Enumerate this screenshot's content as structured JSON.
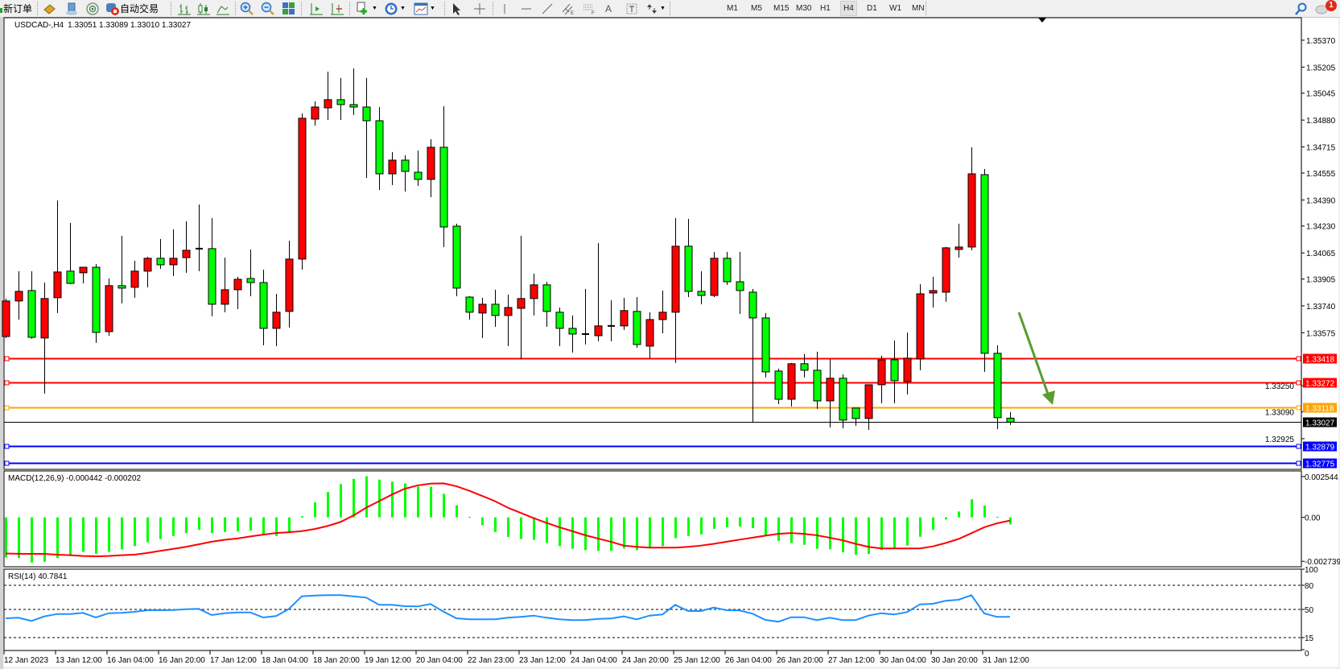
{
  "toolbar": {
    "new_order_label": "新订单",
    "auto_trading_label": "自动交易",
    "timeframes": [
      "M1",
      "M5",
      "M15",
      "M30",
      "H1",
      "H4",
      "D1",
      "W1",
      "MN"
    ],
    "active_timeframe": "H4",
    "notification_count": "1",
    "icons": [
      "new-order-icon",
      "strategy-tester-icon",
      "market-watch-icon",
      "signals-icon",
      "auto-trading-icon",
      "bar-chart-icon",
      "candlestick-icon",
      "line-chart-icon",
      "zoom-in-icon",
      "zoom-out-icon",
      "tile-windows-icon",
      "chart-shift-icon",
      "auto-scroll-icon",
      "indicators-icon",
      "periods-icon",
      "templates-icon",
      "cursor-icon",
      "crosshair-icon",
      "vertical-line-icon",
      "horizontal-line-icon",
      "trendline-icon",
      "equidistant-channel-icon",
      "fibonacci-icon",
      "text-icon",
      "text-label-icon",
      "arrows-icon",
      "search-icon",
      "notifications-icon"
    ]
  },
  "chart_data": {
    "type": "candlestick",
    "symbol_header": "USDCAD-,H4",
    "ohlc_header": "1.33051 1.33089 1.33010 1.33027",
    "up_color": "#ff0000",
    "down_color": "#00ff00",
    "ylim": [
      1.32737,
      1.35508
    ],
    "price_ticks": [
      "1.35370",
      "1.35205",
      "1.35045",
      "1.34880",
      "1.34715",
      "1.34555",
      "1.34390",
      "1.34230",
      "1.34065",
      "1.33905",
      "1.33740",
      "1.33575",
      "1.33250",
      "1.33090",
      "1.32925"
    ],
    "time_labels": [
      "12 Jan 2023",
      "13 Jan 12:00",
      "16 Jan 04:00",
      "16 Jan 20:00",
      "17 Jan 12:00",
      "18 Jan 04:00",
      "18 Jan 20:00",
      "19 Jan 12:00",
      "20 Jan 04:00",
      "22 Jan 23:00",
      "23 Jan 12:00",
      "24 Jan 04:00",
      "24 Jan 20:00",
      "25 Jan 12:00",
      "26 Jan 04:00",
      "26 Jan 20:00",
      "27 Jan 12:00",
      "30 Jan 04:00",
      "30 Jan 20:00",
      "31 Jan 12:00"
    ],
    "candles_ohlc": [
      [
        1.33552,
        1.33785,
        1.33543,
        1.3377
      ],
      [
        1.3377,
        1.33953,
        1.33656,
        1.33829
      ],
      [
        1.33834,
        1.33953,
        1.33538,
        1.33547
      ],
      [
        1.33543,
        1.33883,
        1.33202,
        1.33785
      ],
      [
        1.3379,
        1.34387,
        1.33696,
        1.33948
      ],
      [
        1.33953,
        1.34249,
        1.33873,
        1.33878
      ],
      [
        1.33943,
        1.33977,
        1.33878,
        1.33977
      ],
      [
        1.33977,
        1.33997,
        1.33513,
        1.33577
      ],
      [
        1.33582,
        1.33908,
        1.33557,
        1.33864
      ],
      [
        1.33864,
        1.3417,
        1.33755,
        1.33849
      ],
      [
        1.33854,
        1.34017,
        1.3379,
        1.33953
      ],
      [
        1.33953,
        1.34041,
        1.33854,
        1.34032
      ],
      [
        1.34032,
        1.3415,
        1.33967,
        1.33992
      ],
      [
        1.33992,
        1.34209,
        1.33923,
        1.34032
      ],
      [
        1.34036,
        1.34259,
        1.33943,
        1.34081
      ],
      [
        1.34091,
        1.34362,
        1.33953,
        1.34091
      ],
      [
        1.34091,
        1.34279,
        1.33676,
        1.3375
      ],
      [
        1.3375,
        1.34036,
        1.33701,
        1.33839
      ],
      [
        1.33839,
        1.33918,
        1.3372,
        1.33903
      ],
      [
        1.33908,
        1.34086,
        1.33799,
        1.33883
      ],
      [
        1.33883,
        1.33962,
        1.33498,
        1.33602
      ],
      [
        1.33602,
        1.33814,
        1.33493,
        1.33701
      ],
      [
        1.33706,
        1.3414,
        1.33607,
        1.34027
      ],
      [
        1.34027,
        1.34921,
        1.33962,
        1.34891
      ],
      [
        1.34886,
        1.34995,
        1.34846,
        1.3496
      ],
      [
        1.34955,
        1.35177,
        1.34881,
        1.35005
      ],
      [
        1.35005,
        1.35138,
        1.34881,
        1.34975
      ],
      [
        1.34975,
        1.35197,
        1.34911,
        1.3496
      ],
      [
        1.3496,
        1.35138,
        1.34525,
        1.34876
      ],
      [
        1.34876,
        1.3496,
        1.34451,
        1.3455
      ],
      [
        1.3455,
        1.34684,
        1.34481,
        1.34634
      ],
      [
        1.34634,
        1.34664,
        1.34442,
        1.34565
      ],
      [
        1.3456,
        1.34693,
        1.34476,
        1.34516
      ],
      [
        1.34516,
        1.34762,
        1.34407,
        1.34713
      ],
      [
        1.34713,
        1.34965,
        1.34101,
        1.34224
      ],
      [
        1.34229,
        1.34244,
        1.33799,
        1.33849
      ],
      [
        1.33794,
        1.33799,
        1.33656,
        1.33701
      ],
      [
        1.33696,
        1.3379,
        1.33543,
        1.3375
      ],
      [
        1.3375,
        1.33839,
        1.33612,
        1.33681
      ],
      [
        1.33681,
        1.33809,
        1.33493,
        1.3373
      ],
      [
        1.33725,
        1.3417,
        1.33414,
        1.33785
      ],
      [
        1.33785,
        1.33938,
        1.33681,
        1.33869
      ],
      [
        1.33869,
        1.33888,
        1.33612,
        1.33706
      ],
      [
        1.33701,
        1.3373,
        1.33493,
        1.33602
      ],
      [
        1.33602,
        1.33681,
        1.33454,
        1.33567
      ],
      [
        1.33567,
        1.33844,
        1.33503,
        1.33562
      ],
      [
        1.33557,
        1.34125,
        1.33523,
        1.33617
      ],
      [
        1.33617,
        1.33775,
        1.33523,
        1.33612
      ],
      [
        1.33617,
        1.3379,
        1.33592,
        1.33711
      ],
      [
        1.33706,
        1.33794,
        1.33483,
        1.33503
      ],
      [
        1.33493,
        1.33701,
        1.33419,
        1.33656
      ],
      [
        1.33656,
        1.33834,
        1.33572,
        1.33701
      ],
      [
        1.33701,
        1.34279,
        1.3339,
        1.34106
      ],
      [
        1.34106,
        1.34274,
        1.33794,
        1.33829
      ],
      [
        1.33829,
        1.33953,
        1.3375,
        1.33804
      ],
      [
        1.33804,
        1.34071,
        1.33794,
        1.34032
      ],
      [
        1.34032,
        1.34071,
        1.33869,
        1.33888
      ],
      [
        1.33888,
        1.34071,
        1.33691,
        1.33834
      ],
      [
        1.33824,
        1.33844,
        1.33024,
        1.33666
      ],
      [
        1.33666,
        1.33696,
        1.33301,
        1.33335
      ],
      [
        1.3334,
        1.33355,
        1.33137,
        1.33167
      ],
      [
        1.33167,
        1.3339,
        1.33123,
        1.33385
      ],
      [
        1.33385,
        1.33444,
        1.33301,
        1.33345
      ],
      [
        1.33345,
        1.33459,
        1.33108,
        1.33157
      ],
      [
        1.33157,
        1.33414,
        1.32994,
        1.33296
      ],
      [
        1.33296,
        1.3332,
        1.32989,
        1.33039
      ],
      [
        1.33113,
        1.33113,
        1.33004,
        1.33049
      ],
      [
        1.33049,
        1.33256,
        1.32979,
        1.33256
      ],
      [
        1.33256,
        1.33434,
        1.33142,
        1.33409
      ],
      [
        1.33409,
        1.33528,
        1.33142,
        1.33281
      ],
      [
        1.33276,
        1.33577,
        1.33197,
        1.33419
      ],
      [
        1.33414,
        1.33873,
        1.33345,
        1.33814
      ],
      [
        1.33819,
        1.33918,
        1.3373,
        1.33834
      ],
      [
        1.33824,
        1.34101,
        1.33765,
        1.34096
      ],
      [
        1.34086,
        1.34244,
        1.34036,
        1.34101
      ],
      [
        1.34101,
        1.34713,
        1.34081,
        1.3455
      ],
      [
        1.34545,
        1.3458,
        1.33335,
        1.33449
      ],
      [
        1.33449,
        1.33498,
        1.32984,
        1.33054
      ],
      [
        1.33051,
        1.33089,
        1.3301,
        1.33027
      ]
    ],
    "levels": [
      {
        "label": "1.33418",
        "value": 1.33418,
        "color": "#ff0000"
      },
      {
        "label": "1.33272",
        "value": 1.33272,
        "color": "#ff0000"
      },
      {
        "label": "1.33118",
        "value": 1.33118,
        "color": "#ffa500"
      },
      {
        "label": "1.32879",
        "value": 1.32879,
        "color": "#0000ff"
      },
      {
        "label": "1.32775",
        "value": 1.32775,
        "color": "#0000ff"
      }
    ],
    "current_price": {
      "label": "1.33027",
      "value": 1.33027,
      "color": "#000000"
    },
    "annotation_arrow_color": "#5b9b32",
    "macd": {
      "header": "MACD(12,26,9) -0.000442 -0.000202",
      "ylim": [
        -0.00308,
        0.00289
      ],
      "ticks": [
        {
          "label": "0.002544",
          "value": 0.002544
        },
        {
          "label": "0.00",
          "value": 0
        },
        {
          "label": "-0.002739",
          "value": -0.002739
        }
      ],
      "hist_color": "#00ff00",
      "signal_color": "#ff0000",
      "histogram": [
        -0.0025,
        -0.00253,
        -0.00282,
        -0.00277,
        -0.00253,
        -0.00233,
        -0.00215,
        -0.00227,
        -0.00215,
        -0.00199,
        -0.00179,
        -0.00155,
        -0.00135,
        -0.00116,
        -0.00098,
        -0.00078,
        -0.00098,
        -0.00091,
        -0.00088,
        -0.00083,
        -0.00106,
        -0.00116,
        -0.0009,
        8e-05,
        0.00093,
        0.00158,
        0.00207,
        0.0024,
        0.00256,
        0.00235,
        0.00223,
        0.00212,
        0.00191,
        0.00191,
        0.00147,
        0.00075,
        3e-05,
        -0.00049,
        -0.00091,
        -0.00122,
        -0.00135,
        -0.0014,
        -0.0016,
        -0.00179,
        -0.00196,
        -0.00204,
        -0.00209,
        -0.00209,
        -0.00194,
        -0.00204,
        -0.00192,
        -0.00179,
        -0.0013,
        -0.00116,
        -0.00106,
        -0.00072,
        -0.00062,
        -0.00057,
        -0.00067,
        -0.00111,
        -0.00147,
        -0.0016,
        -0.00171,
        -0.00196,
        -0.00199,
        -0.00218,
        -0.00233,
        -0.00228,
        -0.00204,
        -0.00192,
        -0.00176,
        -0.00121,
        -0.00078,
        -0.00013,
        0.00036,
        0.00112,
        0.00073,
        3e-05,
        -0.000442
      ],
      "signal": [
        -0.00225,
        -0.00227,
        -0.00228,
        -0.00228,
        -0.00233,
        -0.00236,
        -0.00241,
        -0.00243,
        -0.00241,
        -0.00236,
        -0.00233,
        -0.00222,
        -0.00209,
        -0.00197,
        -0.00184,
        -0.00168,
        -0.00152,
        -0.0014,
        -0.00132,
        -0.00119,
        -0.00108,
        -0.00098,
        -0.00093,
        -0.00086,
        -0.00073,
        -0.00054,
        -0.00029,
        0.00011,
        0.0006,
        0.00101,
        0.00142,
        0.00178,
        0.00199,
        0.0021,
        0.00212,
        0.00194,
        0.00166,
        0.00134,
        0.00101,
        0.0006,
        0.00028,
        -5e-05,
        -0.00034,
        -0.00062,
        -0.00086,
        -0.00111,
        -0.00132,
        -0.00152,
        -0.00176,
        -0.00184,
        -0.00189,
        -0.00189,
        -0.00189,
        -0.00184,
        -0.00176,
        -0.00165,
        -0.00152,
        -0.00139,
        -0.00127,
        -0.00114,
        -0.00103,
        -0.00098,
        -0.00103,
        -0.00112,
        -0.00127,
        -0.00143,
        -0.00165,
        -0.00184,
        -0.00194,
        -0.00194,
        -0.00194,
        -0.00194,
        -0.00181,
        -0.0016,
        -0.00135,
        -0.00099,
        -0.00062,
        -0.00037,
        -0.000202
      ]
    },
    "rsi": {
      "header": "RSI(14) 40.7841",
      "ylim": [
        0,
        100
      ],
      "ticks": [
        "100",
        "80",
        "50",
        "15",
        "0"
      ],
      "levels": [
        80,
        50,
        15
      ],
      "color": "#1e90ff",
      "values": [
        39,
        39.7,
        35.7,
        41.3,
        44.3,
        44.3,
        45.7,
        40,
        45.3,
        45.7,
        47,
        49,
        49,
        49.3,
        50.3,
        50.7,
        43,
        45.3,
        46.3,
        46.3,
        40,
        41.7,
        50.7,
        66.3,
        67.3,
        67.7,
        67.7,
        66.3,
        64.7,
        55.7,
        55.7,
        54,
        53.7,
        56.7,
        47.3,
        39,
        37.7,
        37.7,
        37.7,
        39.7,
        40.7,
        42.3,
        39.7,
        37.7,
        36.7,
        36.7,
        38.3,
        38.7,
        41.3,
        37.7,
        42.3,
        43.7,
        55.7,
        48,
        48,
        52.3,
        49,
        48.7,
        44.7,
        37,
        34.7,
        40.3,
        40.3,
        36.7,
        39.7,
        36.7,
        36.7,
        42.3,
        45.3,
        43.7,
        46.7,
        56.3,
        57,
        60.7,
        62,
        67.7,
        45,
        40.7,
        40.78
      ]
    }
  }
}
